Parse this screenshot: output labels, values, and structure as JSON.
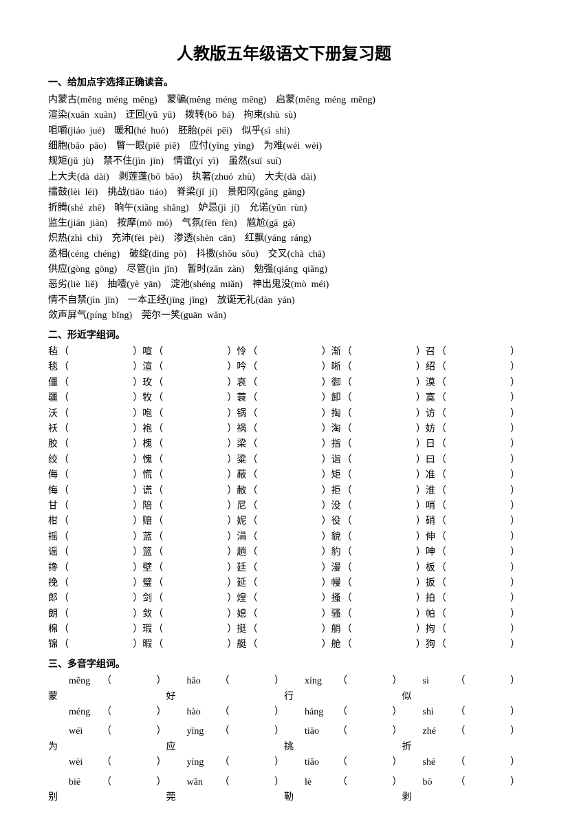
{
  "title": "人教版五年级语文下册复习题",
  "section1": {
    "heading": "一、给加点字选择正确读音。",
    "lines": [
      "内蒙古(měng  méng  mēng)    蒙骗(měng  méng  mēng)    启蒙(měng  méng  mēng)",
      "渲染(xuān  xuàn)    迂回(yǔ  yū)    拨转(bō  bá)    拘束(shù  sù)",
      "咀嚼(jiáo  jué)    暖和(hé  huó)    胚胎(péi  pēi)    似乎(sì  shì)",
      "细胞(bāo  pāo)    瞥一眼(piē  piě)    应付(yīng  yìng)    为难(wéi  wèi)",
      "规矩(jǔ  jù)    禁不住(jìn  jīn)    情谊(yí  yì)    虽然(suī  suí)",
      "上大夫(dà  dài)    剥莲蓬(bō  bāo)    执著(zhuó  zhù)    大夫(dà  dài)",
      "擂鼓(lèi  léi)    挑战(tiāo  tiáo)    脊梁(jǐ  jí)    景阳冈(gǎng  gāng)",
      "折腾(shé  zhē)    晌午(xiǎng  shǎng)    妒忌(jì  jí)    允诺(yǔn  rùn)",
      "监生(jiān  jiàn)    按摩(mō  mó)    气氛(fēn  fèn)    尴尬(gā  gá)",
      "炽热(zhì  chì)    充沛(fèi  pèi)    渗透(shèn  cān)    红飘(yáng  ráng)",
      "丞相(céng  chéng)    破绽(dìng  pò)    抖擞(shǒu  sǒu)    交叉(chà  chā)",
      "供应(gòng  gōng)    尽管(jìn  jǐn)    暂时(zǎn  zàn)    勉强(qiáng  qiǎng)",
      "恶劣(liè  liě)    抽噎(yè  yān)    淀池(shéng  miǎn)    神出鬼没(mò  méi)",
      "情不自禁(jìn  jīn)    一本正经(jīng  jǐng)    放诞无礼(dàn  yán)",
      "敛声屏气(píng  bǐng)    莞尔一笑(guān  wǎn)"
    ]
  },
  "section2": {
    "heading": "二、形近字组词。",
    "rows": [
      [
        "毡",
        "喧",
        "怜",
        "渐",
        "召"
      ],
      [
        "毯",
        "渲",
        "吟",
        "晰",
        "绍"
      ],
      [
        "僵",
        "玫",
        "哀",
        "御",
        "漠"
      ],
      [
        "疆",
        "牧",
        "蓑",
        "卸",
        "寞"
      ],
      [
        "沃",
        "咆",
        "锅",
        "掏",
        "访"
      ],
      [
        "袄",
        "袍",
        "祸",
        "淘",
        "妨"
      ],
      [
        "胶",
        "槐",
        "梁",
        "指",
        "日"
      ],
      [
        "绞",
        "愧",
        "粱",
        "诣",
        "曰"
      ],
      [
        "侮",
        "慌",
        "蔽",
        "矩",
        "准"
      ],
      [
        "悔",
        "谎",
        "敝",
        "拒",
        "淮"
      ],
      [
        "甘",
        "陪",
        "尼",
        "没",
        "哨"
      ],
      [
        "柑",
        "赔",
        "妮",
        "役",
        "硝"
      ],
      [
        "摇",
        "蓝",
        "涓",
        "貌",
        "伸"
      ],
      [
        "谣",
        "篮",
        "趟",
        "豹",
        "呻"
      ],
      [
        "搀",
        "壁",
        "廷",
        "漫",
        "板"
      ],
      [
        "挽",
        "璧",
        "延",
        "幔",
        "扳"
      ],
      [
        "郎",
        "剑",
        "煌",
        "搔",
        "拍"
      ],
      [
        "朗",
        "敛",
        "媳",
        "骚",
        "帕"
      ],
      [
        "棉",
        "瑕",
        "挺",
        "艄",
        "拘"
      ],
      [
        "锦",
        "暇",
        "艇",
        "舱",
        "狗"
      ]
    ]
  },
  "section3": {
    "heading": "三、多音字组词。",
    "groups": [
      [
        {
          "h": "蒙",
          "p": [
            "měng",
            "méng"
          ]
        },
        {
          "h": "好",
          "p": [
            "hǎo",
            "hào"
          ]
        },
        {
          "h": "行",
          "p": [
            "xíng",
            "háng"
          ]
        },
        {
          "h": "似",
          "p": [
            "sì",
            "shì"
          ]
        }
      ],
      [
        {
          "h": "为",
          "p": [
            "wéi",
            "wèi"
          ]
        },
        {
          "h": "应",
          "p": [
            "yīng",
            "yìng"
          ]
        },
        {
          "h": "挑",
          "p": [
            "tiāo",
            "tiǎo"
          ]
        },
        {
          "h": "折",
          "p": [
            "zhé",
            "shé"
          ]
        }
      ],
      [
        {
          "h": "别",
          "p": [
            "bié",
            ""
          ]
        },
        {
          "h": "莞",
          "p": [
            "wǎn",
            ""
          ]
        },
        {
          "h": "勒",
          "p": [
            "lè",
            ""
          ]
        },
        {
          "h": "剥",
          "p": [
            "bō",
            ""
          ]
        }
      ]
    ]
  }
}
